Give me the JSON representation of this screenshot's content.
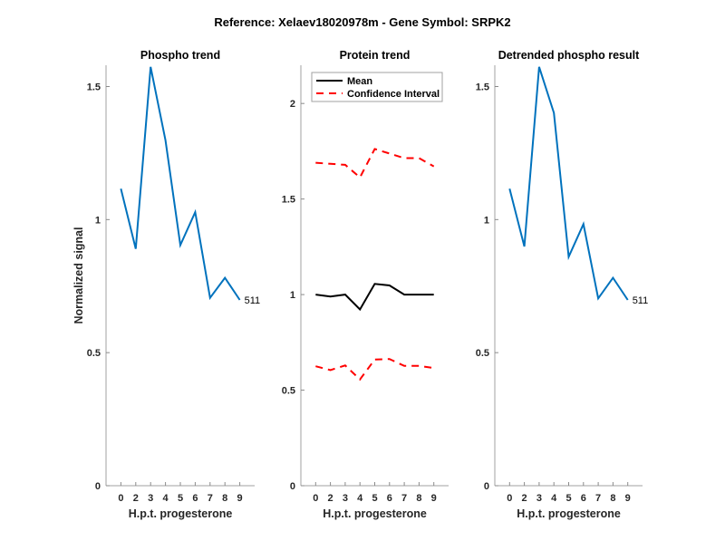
{
  "chart_data": {
    "title": "Reference:  Xelaev18020978m - Gene Symbol:  SRPK2",
    "panels": [
      {
        "type": "line",
        "title": "Phospho trend",
        "xlabel": "H.p.t. progesterone",
        "ylabel": "Normalized signal",
        "categories": [
          "0",
          "2",
          "3",
          "4",
          "5",
          "6",
          "7",
          "8",
          "9"
        ],
        "ylim": [
          0,
          1.58
        ],
        "yticks": [
          0,
          0.5,
          1,
          1.5
        ],
        "ytick_labels": [
          "0",
          "0.5",
          "1",
          "1.5"
        ],
        "series": [
          {
            "name": "511",
            "color": "#0072BD",
            "style": "solid",
            "values": [
              1.116,
              0.89,
              1.574,
              1.298,
              0.904,
              1.028,
              0.706,
              0.781,
              0.698
            ]
          }
        ],
        "annotations": [
          {
            "text": "511",
            "at_index": 8
          }
        ]
      },
      {
        "type": "line",
        "title": "Protein trend",
        "xlabel": "H.p.t. progesterone",
        "ylabel": "",
        "categories": [
          "0",
          "2",
          "3",
          "4",
          "5",
          "6",
          "7",
          "8",
          "9"
        ],
        "ylim": [
          0,
          2.2
        ],
        "yticks": [
          0,
          0.5,
          1,
          1.5,
          2
        ],
        "ytick_labels": [
          "0",
          "0.5",
          "1",
          "1.5",
          "2"
        ],
        "legend": {
          "placement": "top-left",
          "entries": [
            "Mean",
            "Confidence Interval"
          ]
        },
        "series": [
          {
            "name": "Mean",
            "color": "#000000",
            "style": "solid",
            "values": [
              1.0,
              0.99,
              1.0,
              0.922,
              1.056,
              1.048,
              1.0,
              1.0,
              1.0
            ]
          },
          {
            "name": "Confidence Interval",
            "color": "#FF0000",
            "style": "dashed",
            "values": [
              1.69,
              1.684,
              1.679,
              1.613,
              1.762,
              1.738,
              1.714,
              1.714,
              1.671
            ]
          },
          {
            "name": "Confidence Interval (lower)",
            "color": "#FF0000",
            "style": "dashed",
            "values": [
              0.625,
              0.605,
              0.629,
              0.556,
              0.66,
              0.663,
              0.627,
              0.627,
              0.616
            ]
          }
        ]
      },
      {
        "type": "line",
        "title": "Detrended phospho result",
        "xlabel": "H.p.t. progesterone",
        "ylabel": "",
        "categories": [
          "0",
          "2",
          "3",
          "4",
          "5",
          "6",
          "7",
          "8",
          "9"
        ],
        "ylim": [
          0,
          1.58
        ],
        "yticks": [
          0,
          0.5,
          1,
          1.5
        ],
        "ytick_labels": [
          "0",
          "0.5",
          "1",
          "1.5"
        ],
        "series": [
          {
            "name": "511",
            "color": "#0072BD",
            "style": "solid",
            "values": [
              1.116,
              0.899,
              1.574,
              1.401,
              0.86,
              0.983,
              0.704,
              0.781,
              0.698
            ]
          }
        ],
        "annotations": [
          {
            "text": "511",
            "at_index": 8
          }
        ]
      }
    ]
  }
}
